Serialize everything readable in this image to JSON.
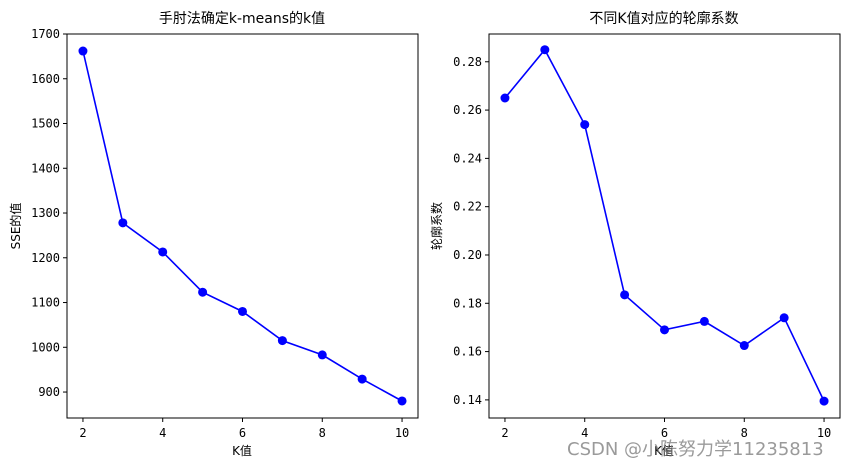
{
  "watermark": "CSDN @小陈努力学11235813",
  "chart_data": [
    {
      "type": "line",
      "title": "手肘法确定k-means的k值",
      "xlabel": "K值",
      "ylabel": "SSE的值",
      "x": [
        2,
        3,
        4,
        5,
        6,
        7,
        8,
        9,
        10
      ],
      "values": [
        1662,
        1278,
        1213,
        1123,
        1080,
        1015,
        983,
        929,
        880
      ],
      "xlim": [
        1.6,
        10.4
      ],
      "ylim": [
        842,
        1700
      ],
      "xticks": [
        2,
        4,
        6,
        8,
        10
      ],
      "xtick_labels": [
        "2",
        "4",
        "6",
        "8",
        "10"
      ],
      "yticks": [
        900,
        1000,
        1100,
        1200,
        1300,
        1400,
        1500,
        1600,
        1700
      ],
      "ytick_labels": [
        "900",
        "1000",
        "1100",
        "1200",
        "1300",
        "1400",
        "1500",
        "1600",
        "1700"
      ],
      "color": "#0000ff",
      "marker": "circle",
      "grid": false
    },
    {
      "type": "line",
      "title": "不同K值对应的轮廓系数",
      "xlabel": "K值",
      "ylabel": "轮廓系数",
      "x": [
        2,
        3,
        4,
        5,
        6,
        7,
        8,
        9,
        10
      ],
      "values": [
        0.265,
        0.285,
        0.254,
        0.1835,
        0.169,
        0.1725,
        0.1625,
        0.174,
        0.1395
      ],
      "xlim": [
        1.6,
        10.4
      ],
      "ylim": [
        0.1325,
        0.2915
      ],
      "xticks": [
        2,
        4,
        6,
        8,
        10
      ],
      "xtick_labels": [
        "2",
        "4",
        "6",
        "8",
        "10"
      ],
      "yticks": [
        0.14,
        0.16,
        0.18,
        0.2,
        0.22,
        0.24,
        0.26,
        0.28
      ],
      "ytick_labels": [
        "0.14",
        "0.16",
        "0.18",
        "0.20",
        "0.22",
        "0.24",
        "0.26",
        "0.28"
      ],
      "color": "#0000ff",
      "marker": "circle",
      "grid": false
    }
  ]
}
